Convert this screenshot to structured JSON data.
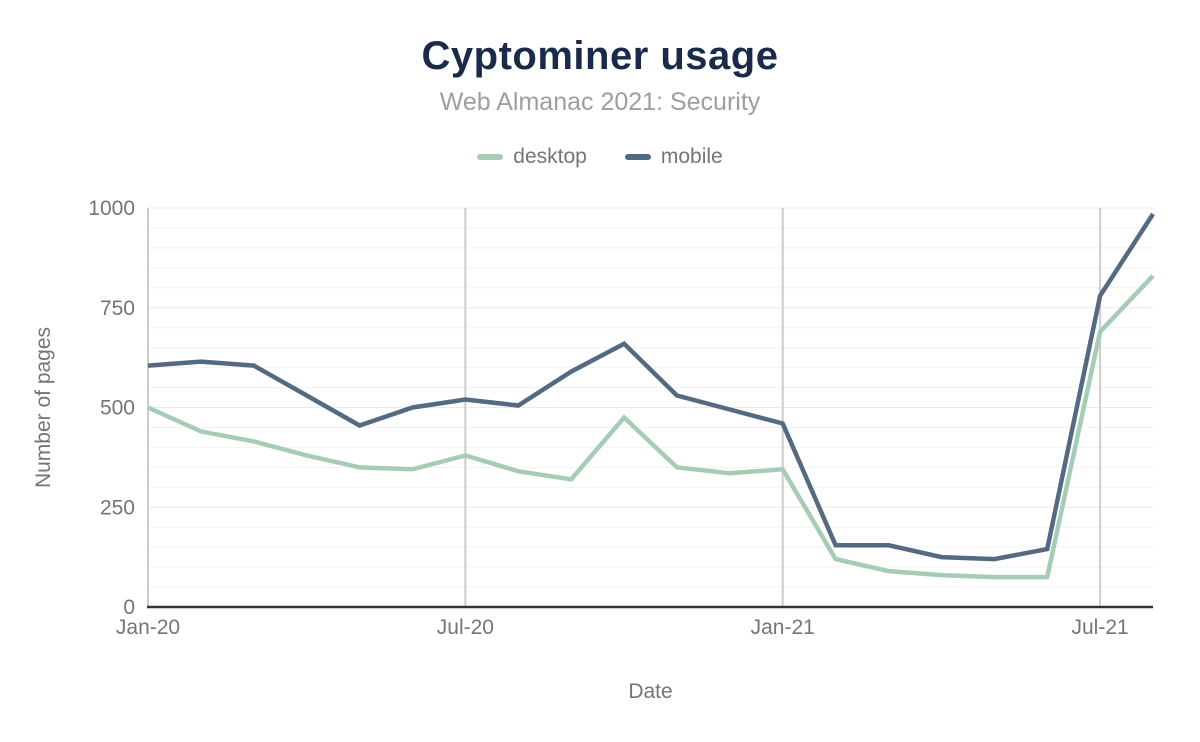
{
  "header": {
    "title": "Cyptominer usage",
    "subtitle": "Web Almanac 2021: Security"
  },
  "chart_data": {
    "type": "line",
    "title": "Cyptominer usage",
    "subtitle": "Web Almanac 2021: Security",
    "xlabel": "Date",
    "ylabel": "Number of pages",
    "legend_position": "top",
    "grid": {
      "y_minor_step": 50,
      "y_major_step": 250,
      "x_gridlines_at_ticks": true
    },
    "ylim": [
      0,
      1000
    ],
    "y_ticks": [
      0,
      250,
      500,
      750,
      1000
    ],
    "x_tick_labels": [
      "Jan-20",
      "Jul-20",
      "Jan-21",
      "Jul-21"
    ],
    "x_tick_indices": [
      0,
      6,
      12,
      18
    ],
    "categories": [
      "Jan-20",
      "Feb-20",
      "Mar-20",
      "Apr-20",
      "May-20",
      "Jun-20",
      "Jul-20",
      "Aug-20",
      "Sep-20",
      "Oct-20",
      "Nov-20",
      "Dec-20",
      "Jan-21",
      "Feb-21",
      "Mar-21",
      "Apr-21",
      "May-21",
      "Jun-21",
      "Jul-21",
      "Aug-21"
    ],
    "series": [
      {
        "name": "desktop",
        "color": "#a6ccb6",
        "values": [
          500,
          440,
          415,
          380,
          350,
          345,
          380,
          340,
          320,
          475,
          350,
          335,
          345,
          120,
          90,
          80,
          75,
          75,
          690,
          830
        ]
      },
      {
        "name": "mobile",
        "color": "#546a80",
        "values": [
          605,
          615,
          605,
          530,
          455,
          500,
          520,
          505,
          590,
          660,
          530,
          495,
          460,
          155,
          155,
          125,
          120,
          145,
          780,
          985
        ]
      }
    ],
    "colors": {
      "title": "#1a2b49",
      "subtitle": "#9e9e9e",
      "axis_text": "#757575",
      "x_axis_line": "#333333",
      "y_axis_line": "#cccccc",
      "v_gridline": "#cccccc",
      "h_gridline_minor": "#f3f3f3",
      "h_gridline_major": "#eaeaea"
    }
  }
}
